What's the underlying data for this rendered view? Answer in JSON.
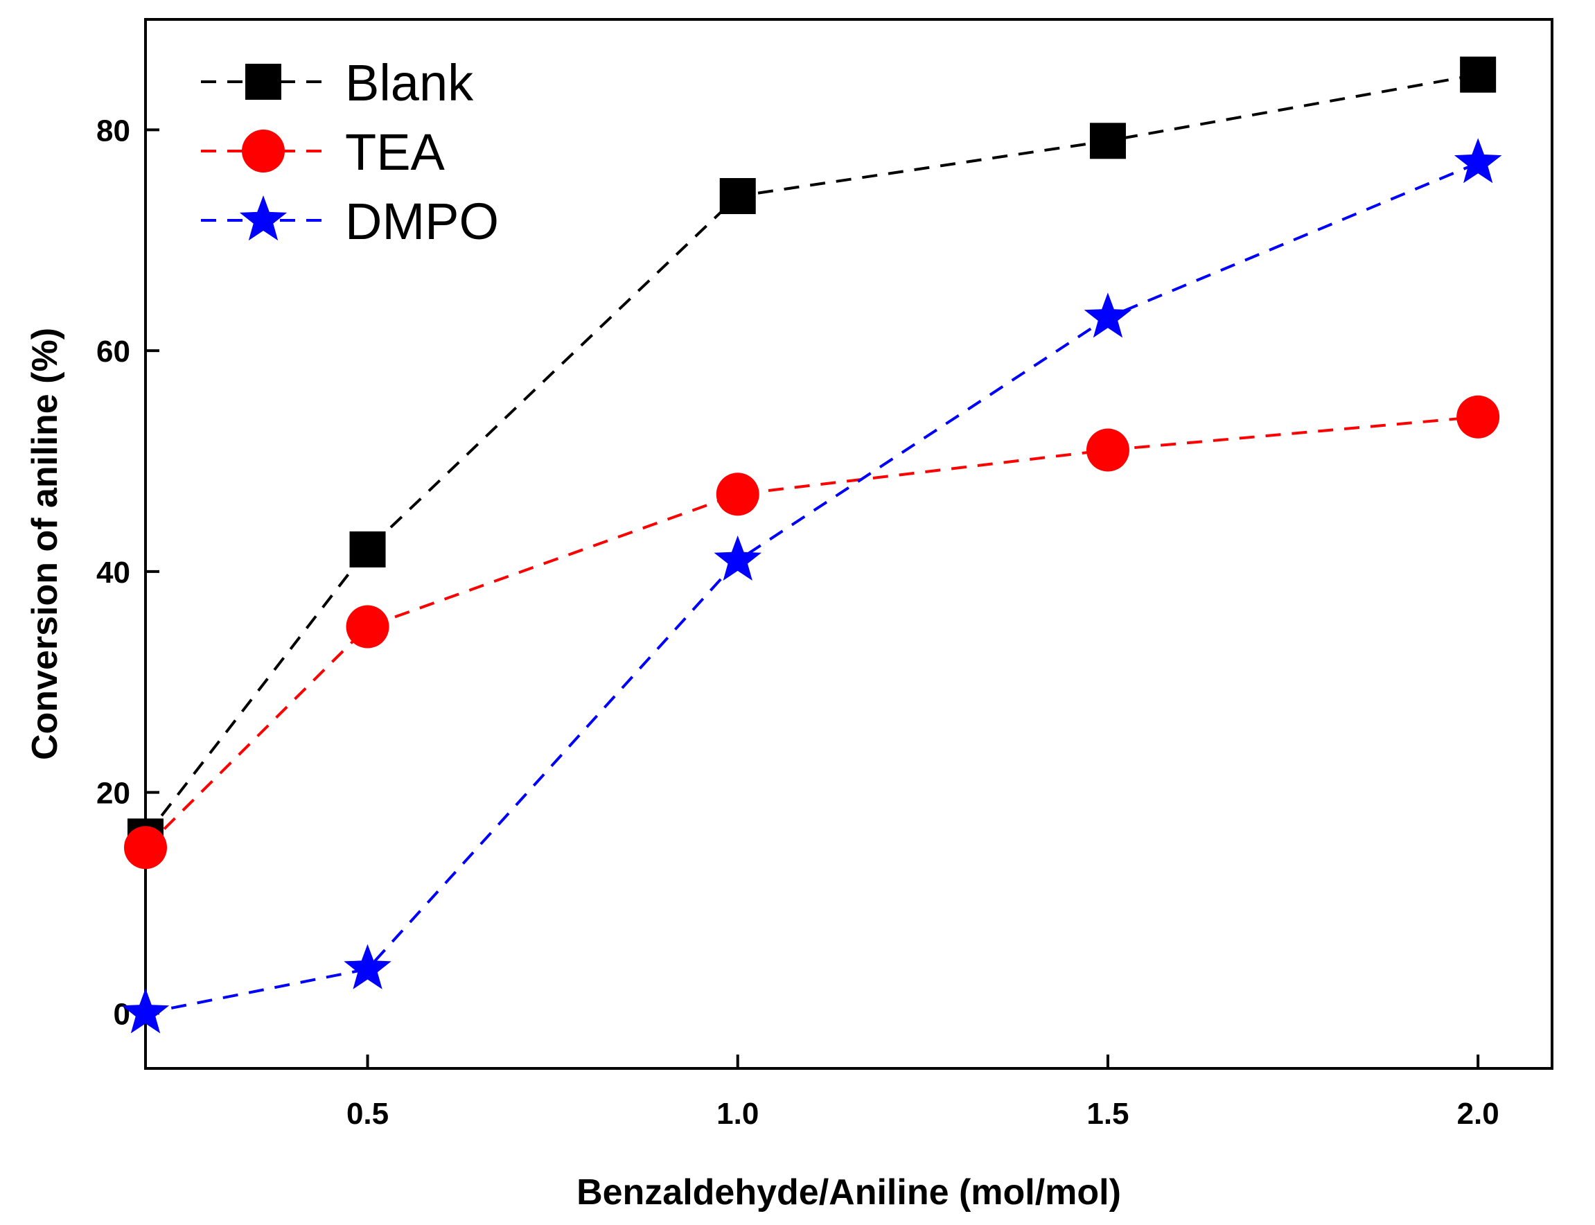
{
  "chart_data": {
    "type": "line",
    "title": "",
    "xlabel": "Benzaldehyde/Aniline (mol/mol)",
    "ylabel": "Conversion of aniline (%)",
    "xlim": [
      0.2,
      2.1
    ],
    "ylim": [
      -5,
      90
    ],
    "x_ticks": [
      0.5,
      1.0,
      1.5,
      2.0
    ],
    "x_tick_labels": [
      "0.5",
      "1.0",
      "1.5",
      "2.0"
    ],
    "y_ticks": [
      0,
      20,
      40,
      60,
      80
    ],
    "y_tick_labels": [
      "0",
      "20",
      "40",
      "60",
      "80"
    ],
    "grid": false,
    "legend_position": "top-left",
    "series": [
      {
        "name": "Blank",
        "marker": "square",
        "color": "#000000",
        "x": [
          0.2,
          0.5,
          1.0,
          1.5,
          2.0
        ],
        "values": [
          16,
          42,
          74,
          79,
          85
        ]
      },
      {
        "name": "TEA",
        "marker": "circle",
        "color": "#ff0000",
        "x": [
          0.2,
          0.5,
          1.0,
          1.5,
          2.0
        ],
        "values": [
          15,
          35,
          47,
          51,
          54
        ]
      },
      {
        "name": "DMPO",
        "marker": "star",
        "color": "#0000ff",
        "x": [
          0.2,
          0.5,
          1.0,
          1.5,
          2.0
        ],
        "values": [
          0,
          4,
          41,
          63,
          77
        ]
      }
    ]
  }
}
